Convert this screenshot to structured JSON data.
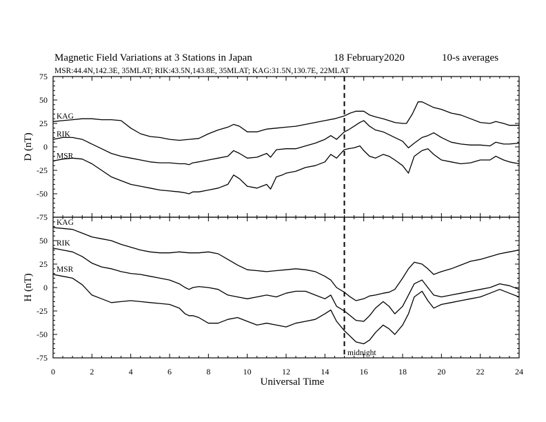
{
  "title": "Magnetic Field Variations at 3 Stations in Japan",
  "date": "18 February2020",
  "averaging": "10-s averages",
  "stations_line": "MSR:44.4N,142.3E, 35MLAT;  RIK:43.5N,143.8E, 35MLAT;  KAG:31.5N,130.7E, 22MLAT",
  "xlabel": "Universal Time",
  "midnight_label": "midnight",
  "colors": {
    "ink": "#000000",
    "background": "#ffffff"
  },
  "chart_data": [
    {
      "type": "line",
      "panel": "D",
      "ylabel": "D (nT)",
      "xlim": [
        0,
        24
      ],
      "ylim": [
        -75,
        75
      ],
      "xticks": [
        0,
        2,
        4,
        6,
        8,
        10,
        12,
        14,
        16,
        18,
        20,
        22,
        24
      ],
      "yticks": [
        -75,
        -50,
        -25,
        0,
        25,
        50,
        75
      ],
      "grid": false,
      "vline": {
        "x": 15,
        "style": "dashed"
      },
      "series": [
        {
          "name": "KAG",
          "x": [
            0,
            0.5,
            1,
            1.5,
            2,
            2.5,
            3,
            3.5,
            4,
            4.5,
            5,
            5.5,
            6,
            6.5,
            7,
            7.5,
            8,
            8.5,
            9,
            9.3,
            9.6,
            10,
            10.5,
            11,
            11.5,
            12,
            12.5,
            13,
            13.5,
            14,
            14.5,
            15,
            15.3,
            15.6,
            16,
            16.3,
            16.6,
            17,
            17.3,
            17.6,
            18,
            18.2,
            18.5,
            18.8,
            19,
            19.3,
            19.6,
            20,
            20.5,
            21,
            21.5,
            22,
            22.5,
            22.8,
            23.2,
            23.5,
            24
          ],
          "y": [
            27,
            28,
            29,
            30,
            30,
            29,
            29,
            28,
            20,
            14,
            11,
            10,
            8,
            7,
            8,
            9,
            14,
            18,
            21,
            24,
            22,
            16,
            16,
            19,
            20,
            21,
            22,
            24,
            26,
            28,
            30,
            33,
            36,
            38,
            38,
            34,
            32,
            30,
            28,
            26,
            25,
            25,
            35,
            48,
            48,
            45,
            42,
            40,
            36,
            34,
            30,
            26,
            25,
            27,
            25,
            23,
            23
          ]
        },
        {
          "name": "RIK",
          "x": [
            0,
            0.5,
            1,
            1.5,
            2,
            2.5,
            3,
            3.5,
            4,
            4.5,
            5,
            5.5,
            6,
            6.5,
            6.8,
            7,
            7.2,
            7.5,
            8,
            8.5,
            9,
            9.3,
            9.6,
            10,
            10.5,
            11,
            11.2,
            11.5,
            12,
            12.5,
            13,
            13.5,
            14,
            14.3,
            14.6,
            15,
            15.2,
            15.5,
            15.8,
            16,
            16.3,
            16.6,
            17,
            17.3,
            17.6,
            18,
            18.3,
            18.6,
            19,
            19.3,
            19.6,
            20,
            20.5,
            21,
            21.5,
            22,
            22.5,
            22.8,
            23.2,
            23.5,
            24
          ],
          "y": [
            8,
            10,
            10,
            8,
            3,
            -2,
            -7,
            -10,
            -12,
            -14,
            -16,
            -17,
            -17,
            -18,
            -18,
            -19,
            -17,
            -16,
            -14,
            -12,
            -10,
            -4,
            -7,
            -12,
            -11,
            -7,
            -11,
            -3,
            -2,
            -2,
            1,
            4,
            8,
            12,
            8,
            16,
            18,
            22,
            26,
            28,
            22,
            18,
            16,
            13,
            10,
            6,
            -1,
            4,
            10,
            12,
            15,
            10,
            5,
            3,
            2,
            2,
            1,
            5,
            3,
            3,
            4
          ]
        },
        {
          "name": "MSR",
          "x": [
            0,
            0.5,
            1,
            1.5,
            2,
            2.5,
            3,
            3.5,
            4,
            4.5,
            5,
            5.5,
            6,
            6.5,
            6.8,
            7,
            7.2,
            7.5,
            8,
            8.5,
            9,
            9.3,
            9.6,
            10,
            10.5,
            11,
            11.2,
            11.5,
            11.8,
            12,
            12.5,
            13,
            13.5,
            14,
            14.3,
            14.6,
            15,
            15.2,
            15.5,
            15.8,
            16,
            16.3,
            16.6,
            17,
            17.3,
            17.6,
            18,
            18.3,
            18.6,
            19,
            19.3,
            19.6,
            20,
            20.5,
            21,
            21.5,
            22,
            22.5,
            22.8,
            23.2,
            23.5,
            24
          ],
          "y": [
            -15,
            -13,
            -12,
            -13,
            -18,
            -25,
            -32,
            -36,
            -40,
            -42,
            -44,
            -46,
            -47,
            -48,
            -49,
            -50,
            -48,
            -48,
            -46,
            -44,
            -40,
            -30,
            -34,
            -42,
            -44,
            -40,
            -45,
            -32,
            -30,
            -28,
            -26,
            -22,
            -20,
            -16,
            -8,
            -12,
            -3,
            -2,
            -1,
            1,
            -4,
            -10,
            -12,
            -8,
            -10,
            -14,
            -20,
            -28,
            -10,
            -4,
            -2,
            -8,
            -14,
            -16,
            -18,
            -17,
            -14,
            -14,
            -10,
            -14,
            -16,
            -18
          ]
        }
      ]
    },
    {
      "type": "line",
      "panel": "H",
      "ylabel": "H (nT)",
      "xlim": [
        0,
        24
      ],
      "ylim": [
        -75,
        75
      ],
      "xticks": [
        0,
        2,
        4,
        6,
        8,
        10,
        12,
        14,
        16,
        18,
        20,
        22,
        24
      ],
      "yticks": [
        -75,
        -50,
        -25,
        0,
        25,
        50,
        75
      ],
      "grid": false,
      "vline": {
        "x": 15,
        "style": "dashed"
      },
      "series": [
        {
          "name": "KAG",
          "x": [
            0,
            0.5,
            1,
            1.5,
            2,
            2.5,
            3,
            3.5,
            4,
            4.5,
            5,
            5.5,
            6,
            6.5,
            7,
            7.5,
            8,
            8.5,
            9,
            9.5,
            10,
            10.5,
            11,
            11.5,
            12,
            12.5,
            13,
            13.5,
            14,
            14.3,
            14.6,
            15,
            15.3,
            15.6,
            16,
            16.3,
            16.6,
            17,
            17.3,
            17.6,
            18,
            18.3,
            18.6,
            19,
            19.3,
            19.6,
            20,
            20.5,
            21,
            21.5,
            22,
            22.5,
            23,
            23.5,
            24
          ],
          "y": [
            64,
            63,
            62,
            58,
            54,
            52,
            50,
            46,
            43,
            40,
            38,
            37,
            37,
            38,
            37,
            37,
            38,
            36,
            30,
            24,
            19,
            18,
            17,
            18,
            19,
            20,
            19,
            17,
            12,
            8,
            0,
            -5,
            -10,
            -14,
            -12,
            -9,
            -8,
            -6,
            -5,
            -2,
            10,
            20,
            27,
            25,
            20,
            14,
            17,
            20,
            24,
            28,
            30,
            33,
            36,
            38,
            40
          ]
        },
        {
          "name": "RIK",
          "x": [
            0,
            0.5,
            1,
            1.5,
            2,
            2.5,
            3,
            3.5,
            4,
            4.5,
            5,
            5.5,
            6,
            6.5,
            6.8,
            7,
            7.2,
            7.5,
            8,
            8.5,
            9,
            9.5,
            10,
            10.5,
            11,
            11.5,
            12,
            12.5,
            13,
            13.5,
            14,
            14.3,
            14.6,
            15,
            15.3,
            15.6,
            16,
            16.3,
            16.6,
            17,
            17.3,
            17.6,
            18,
            18.3,
            18.6,
            19,
            19.3,
            19.6,
            20,
            20.5,
            21,
            21.5,
            22,
            22.5,
            23,
            23.5,
            24
          ],
          "y": [
            42,
            40,
            38,
            33,
            26,
            22,
            20,
            17,
            15,
            14,
            12,
            10,
            8,
            4,
            0,
            -2,
            0,
            1,
            0,
            -2,
            -8,
            -10,
            -12,
            -10,
            -8,
            -10,
            -6,
            -4,
            -4,
            -8,
            -12,
            -8,
            -20,
            -25,
            -30,
            -35,
            -36,
            -30,
            -22,
            -15,
            -20,
            -28,
            -20,
            -8,
            4,
            8,
            0,
            -8,
            -10,
            -8,
            -6,
            -4,
            -2,
            0,
            4,
            2,
            -2
          ]
        },
        {
          "name": "MSR",
          "x": [
            0,
            0.5,
            1,
            1.5,
            2,
            2.5,
            3,
            3.5,
            4,
            4.5,
            5,
            5.5,
            6,
            6.5,
            6.8,
            7,
            7.2,
            7.5,
            8,
            8.5,
            9,
            9.5,
            10,
            10.5,
            11,
            11.5,
            12,
            12.5,
            13,
            13.5,
            14,
            14.3,
            14.6,
            15,
            15.3,
            15.6,
            16,
            16.3,
            16.6,
            17,
            17.3,
            17.6,
            18,
            18.3,
            18.6,
            19,
            19.3,
            19.6,
            20,
            20.5,
            21,
            21.5,
            22,
            22.5,
            23,
            23.5,
            24
          ],
          "y": [
            14,
            12,
            10,
            3,
            -8,
            -12,
            -16,
            -15,
            -14,
            -15,
            -16,
            -17,
            -18,
            -22,
            -28,
            -30,
            -30,
            -32,
            -38,
            -38,
            -34,
            -32,
            -36,
            -40,
            -38,
            -40,
            -42,
            -38,
            -36,
            -34,
            -28,
            -24,
            -36,
            -46,
            -52,
            -58,
            -60,
            -56,
            -48,
            -40,
            -44,
            -50,
            -40,
            -28,
            -10,
            -4,
            -14,
            -22,
            -18,
            -16,
            -14,
            -12,
            -10,
            -6,
            -2,
            -6,
            -10
          ]
        }
      ]
    }
  ]
}
